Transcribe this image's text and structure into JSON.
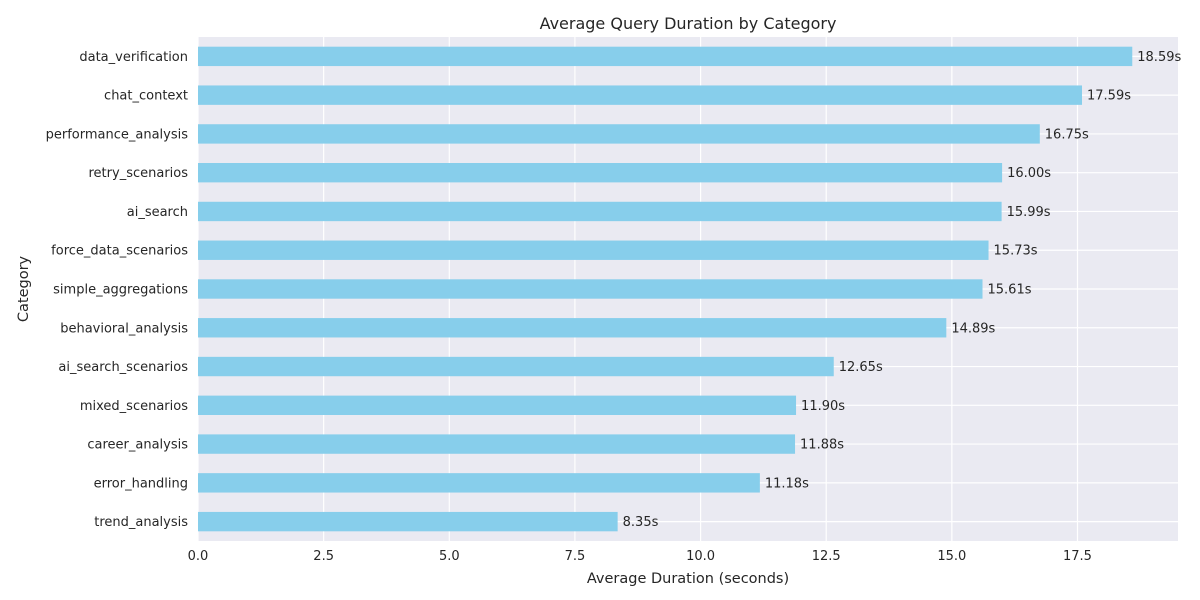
{
  "chart_data": {
    "type": "bar",
    "orientation": "horizontal",
    "title": "Average Query Duration by Category",
    "xlabel": "Average Duration (seconds)",
    "ylabel": "Category",
    "xlim": [
      0,
      19.5
    ],
    "xticks": [
      0,
      2.5,
      5,
      7.5,
      10,
      12.5,
      15,
      17.5
    ],
    "xtick_labels": [
      "0.0",
      "2.5",
      "5.0",
      "7.5",
      "10.0",
      "12.5",
      "15.0",
      "17.5"
    ],
    "grid": true,
    "bar_color": "#87CEEB",
    "background_color": "#EAEAF2",
    "categories": [
      "data_verification",
      "chat_context",
      "performance_analysis",
      "retry_scenarios",
      "ai_search",
      "force_data_scenarios",
      "simple_aggregations",
      "behavioral_analysis",
      "ai_search_scenarios",
      "mixed_scenarios",
      "career_analysis",
      "error_handling",
      "trend_analysis"
    ],
    "values": [
      18.59,
      17.59,
      16.75,
      16.0,
      15.99,
      15.73,
      15.61,
      14.89,
      12.65,
      11.9,
      11.88,
      11.18,
      8.35
    ],
    "data_labels": [
      "18.59s",
      "17.59s",
      "16.75s",
      "16.00s",
      "15.99s",
      "15.73s",
      "15.61s",
      "14.89s",
      "12.65s",
      "11.90s",
      "11.88s",
      "11.18s",
      "8.35s"
    ]
  }
}
